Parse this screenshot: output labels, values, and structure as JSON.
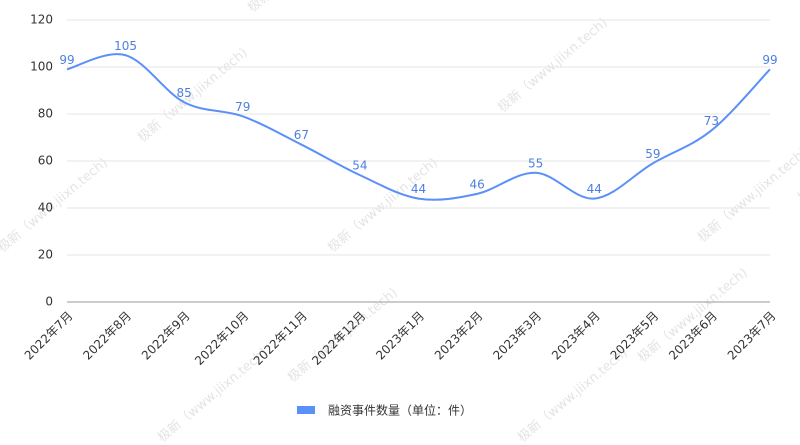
{
  "chart_data": {
    "type": "line",
    "categories": [
      "2022年7月",
      "2022年8月",
      "2022年9月",
      "2022年10月",
      "2022年11月",
      "2022年12月",
      "2023年1月",
      "2023年2月",
      "2023年3月",
      "2023年4月",
      "2023年5月",
      "2023年6月",
      "2023年7月"
    ],
    "series": [
      {
        "name": "融资事件数量（单位：件）",
        "color": "#5b8ff9",
        "values": [
          99,
          105,
          85,
          79,
          67,
          54,
          44,
          46,
          55,
          44,
          59,
          73,
          99
        ]
      }
    ],
    "ylim": [
      0,
      120
    ],
    "yticks": [
      0,
      20,
      40,
      60,
      80,
      100,
      120
    ],
    "grid": true,
    "smooth": true,
    "legend": "bottom",
    "watermark": "极新（www.jiixn.tech)"
  }
}
